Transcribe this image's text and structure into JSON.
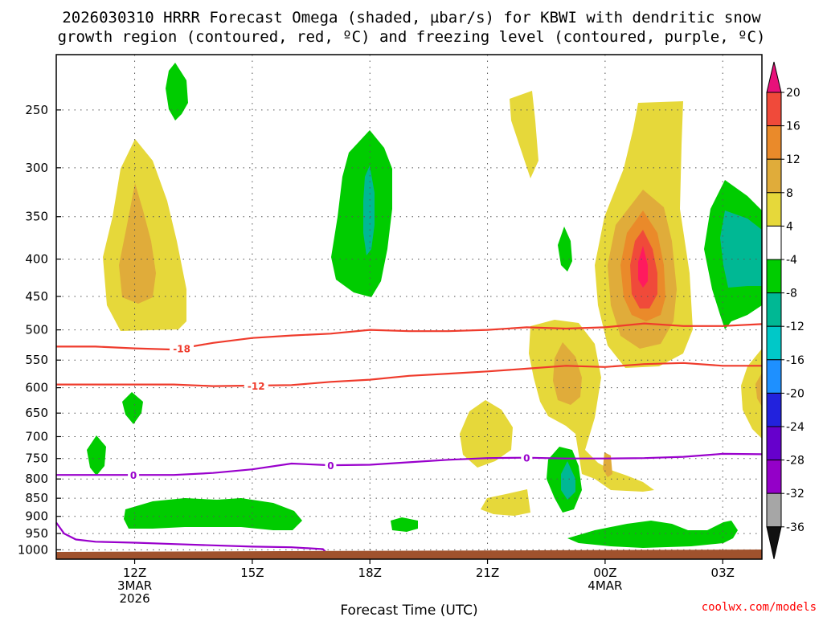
{
  "chart_data": {
    "type": "heatmap",
    "title_lines": [
      "2026030310 HRRR Forecast Omega (shaded, µbar/s) for KBWI with dendritic snow",
      "growth region (contoured, red, ºC) and freezing level (contoured, purple, ºC)"
    ],
    "xlabel": "Forecast Time (UTC)",
    "ylabel": "",
    "credit": "coolwx.com/models",
    "xlim_hours": [
      10,
      28
    ],
    "ylim_hpa": [
      1030,
      210
    ],
    "x_ticks": [
      {
        "hour": 12,
        "label": "12Z",
        "sub": [
          "3MAR",
          "2026"
        ]
      },
      {
        "hour": 15,
        "label": "15Z",
        "sub": []
      },
      {
        "hour": 18,
        "label": "18Z",
        "sub": []
      },
      {
        "hour": 21,
        "label": "21Z",
        "sub": []
      },
      {
        "hour": 24,
        "label": "00Z",
        "sub": [
          "4MAR"
        ]
      },
      {
        "hour": 27,
        "label": "03Z",
        "sub": []
      }
    ],
    "y_ticks": [
      250,
      300,
      350,
      400,
      450,
      500,
      550,
      600,
      650,
      700,
      750,
      800,
      850,
      900,
      950,
      1000
    ],
    "colorbar": {
      "levels": [
        20,
        16,
        12,
        8,
        4,
        -4,
        -8,
        -12,
        -16,
        -20,
        -24,
        -28,
        -32,
        -36
      ],
      "colors": {
        "m36": "#111111",
        "m32": "#a6a6a6",
        "m28": "#9400c8",
        "m24": "#6600cc",
        "m20": "#2222dd",
        "m16": "#1e90ff",
        "m12": "#00c8c8",
        "m8": "#00b894",
        "m4": "#00cc00",
        "zero": "#ffffff",
        "p4": "#e6d83a",
        "p8": "#e0ac3a",
        "p12": "#ea8a2a",
        "p16": "#f04a3a",
        "p20": "#ff1a5e",
        "top": "#e8117a"
      }
    },
    "contours": [
      {
        "name": "dgz-top",
        "label": "-18",
        "color": "#ef3b2c",
        "points": [
          [
            10,
            527
          ],
          [
            11,
            527
          ],
          [
            12,
            530
          ],
          [
            13,
            532
          ],
          [
            14,
            521
          ],
          [
            15,
            513
          ],
          [
            16,
            509
          ],
          [
            17,
            506
          ],
          [
            18,
            500
          ],
          [
            19,
            502
          ],
          [
            20,
            502
          ],
          [
            21,
            500
          ],
          [
            22,
            496
          ],
          [
            23,
            498
          ],
          [
            24,
            496
          ],
          [
            25,
            490
          ],
          [
            26,
            494
          ],
          [
            27,
            494
          ],
          [
            28,
            491
          ]
        ],
        "label_at": 13.2
      },
      {
        "name": "dgz-bottom",
        "label": "-12",
        "color": "#ef3b2c",
        "points": [
          [
            10,
            594
          ],
          [
            11,
            594
          ],
          [
            12,
            594
          ],
          [
            13,
            594
          ],
          [
            14,
            597
          ],
          [
            15,
            596
          ],
          [
            16,
            595
          ],
          [
            17,
            589
          ],
          [
            18,
            585
          ],
          [
            19,
            578
          ],
          [
            20,
            574
          ],
          [
            21,
            570
          ],
          [
            22,
            565
          ],
          [
            23,
            560
          ],
          [
            24,
            562
          ],
          [
            25,
            557
          ],
          [
            26,
            555
          ],
          [
            27,
            560
          ],
          [
            28,
            560
          ]
        ],
        "label_at": 15.1
      },
      {
        "name": "freezing-level",
        "label": "0",
        "color": "#9900cc",
        "points": [
          [
            10,
            790
          ],
          [
            11,
            790
          ],
          [
            12,
            790
          ],
          [
            13,
            790
          ],
          [
            14,
            785
          ],
          [
            15,
            776
          ],
          [
            16,
            762
          ],
          [
            17,
            766
          ],
          [
            18,
            765
          ],
          [
            19,
            759
          ],
          [
            20,
            753
          ],
          [
            21,
            749
          ],
          [
            22,
            748
          ],
          [
            23,
            750
          ],
          [
            24,
            750
          ],
          [
            25,
            749
          ],
          [
            26,
            746
          ],
          [
            27,
            739
          ],
          [
            28,
            740
          ]
        ],
        "label_at": [
          11.97,
          17.0,
          22.0
        ]
      },
      {
        "name": "freezing-level-lower",
        "label": "",
        "color": "#9900cc",
        "points": [
          [
            10,
            918
          ],
          [
            10.2,
            950
          ],
          [
            10.5,
            968
          ],
          [
            11,
            975
          ],
          [
            12,
            978
          ],
          [
            13,
            982
          ],
          [
            14,
            986
          ],
          [
            15,
            990
          ],
          [
            16,
            992
          ],
          [
            16.8,
            998
          ],
          [
            16.9,
            1010
          ],
          [
            16.5,
            1017
          ],
          [
            16,
            1018
          ]
        ],
        "label_at": null
      }
    ],
    "ground_fill_color": "#a0522d"
  }
}
